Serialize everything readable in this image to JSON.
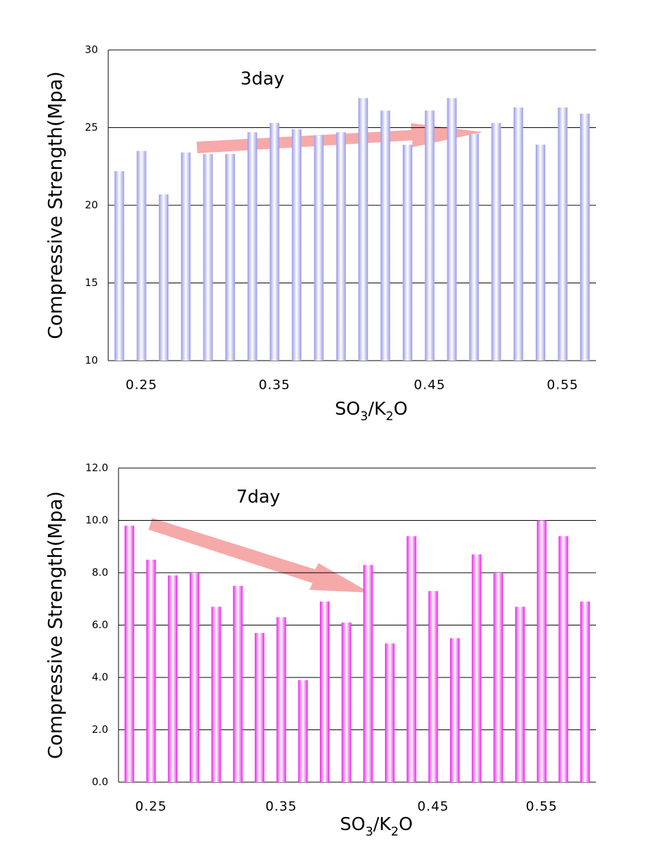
{
  "chart_data": [
    {
      "type": "bar",
      "annotation": "3day",
      "y_label": "Compressive Strength(Mpa)",
      "x_label": "SO3/K2O",
      "categories": [
        null,
        "0.25",
        null,
        null,
        null,
        null,
        null,
        "0.35",
        null,
        null,
        null,
        null,
        null,
        null,
        "0.45",
        null,
        null,
        null,
        null,
        null,
        "0.55",
        null
      ],
      "values": [
        22.2,
        23.5,
        20.7,
        23.4,
        23.3,
        23.3,
        24.7,
        25.3,
        24.9,
        24.5,
        24.7,
        26.9,
        26.1,
        23.9,
        26.1,
        26.9,
        24.6,
        25.3,
        26.3,
        23.9,
        26.3,
        25.9
      ],
      "color": "#9a9ae8",
      "ylim": [
        10,
        30
      ],
      "yticks": [
        10,
        15,
        20,
        25,
        30
      ],
      "grid": true
    },
    {
      "type": "bar",
      "annotation": "7day",
      "y_label": "Compressive Strength(Mpa)",
      "x_label": "SO3/K2O",
      "categories": [
        null,
        "0.25",
        null,
        null,
        null,
        null,
        null,
        "0.35",
        null,
        null,
        null,
        null,
        null,
        null,
        "0.45",
        null,
        null,
        null,
        null,
        "0.55",
        null,
        null
      ],
      "values": [
        9.8,
        8.5,
        7.9,
        8.0,
        6.7,
        7.5,
        5.7,
        6.3,
        3.9,
        6.9,
        6.1,
        8.3,
        5.3,
        9.4,
        7.3,
        5.5,
        8.7,
        8.0,
        6.7,
        10.0,
        9.4,
        6.9
      ],
      "color": "#ee22ee",
      "ylim": [
        0,
        12
      ],
      "yticks": [
        {
          "value": 0,
          "label": "0.0"
        },
        {
          "value": 2,
          "label": "2.0"
        },
        {
          "value": 4,
          "label": "4.0"
        },
        {
          "value": 6,
          "label": "6.0"
        },
        {
          "value": 8,
          "label": "8.0"
        },
        {
          "value": 10,
          "label": "10.0"
        },
        {
          "value": 12,
          "label": "12.0"
        }
      ],
      "grid": true
    }
  ]
}
